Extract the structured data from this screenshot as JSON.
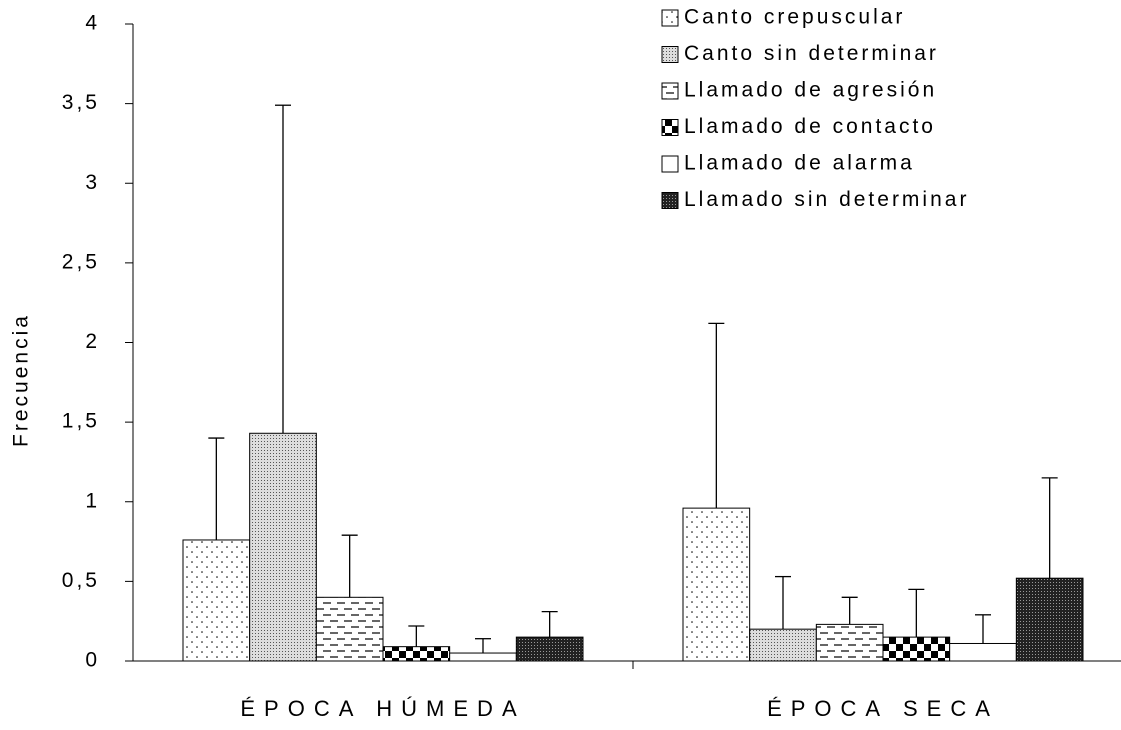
{
  "chart_data": {
    "type": "bar",
    "y_label": "Frecuencia",
    "categories": [
      "ÉPOCA HÚMEDA",
      "ÉPOCA SECA"
    ],
    "ylim": [
      0,
      4
    ],
    "yticks": [
      0,
      {
        "value": 0.5,
        "label": "0,5"
      },
      1,
      {
        "value": 1.5,
        "label": "1,5"
      },
      2,
      {
        "value": 2.5,
        "label": "2,5"
      },
      3,
      {
        "value": 3.5,
        "label": "3,5"
      },
      4
    ],
    "error_bars": "upper",
    "series": [
      {
        "name": "Canto crepuscular",
        "pattern": "dots",
        "values": [
          0.76,
          0.96
        ],
        "errors": [
          0.64,
          1.16
        ]
      },
      {
        "name": "Canto sin determinar",
        "pattern": "fine-dots",
        "values": [
          1.43,
          0.2
        ],
        "errors": [
          2.06,
          0.33
        ]
      },
      {
        "name": "Llamado de agresión",
        "pattern": "dashes",
        "values": [
          0.4,
          0.23
        ],
        "errors": [
          0.39,
          0.17
        ]
      },
      {
        "name": "Llamado de contacto",
        "pattern": "checker",
        "values": [
          0.09,
          0.15
        ],
        "errors": [
          0.13,
          0.3
        ]
      },
      {
        "name": "Llamado de alarma",
        "pattern": "none",
        "values": [
          0.05,
          0.11
        ],
        "errors": [
          0.09,
          0.18
        ]
      },
      {
        "name": "Llamado sin determinar",
        "pattern": "dense",
        "values": [
          0.15,
          0.52
        ],
        "errors": [
          0.16,
          0.63
        ]
      }
    ]
  }
}
